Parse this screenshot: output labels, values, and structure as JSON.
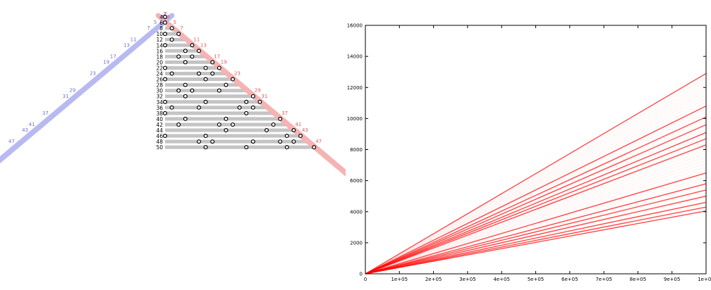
{
  "chart_data": [
    {
      "type": "diagram",
      "even_numbers": [
        4,
        6,
        8,
        10,
        12,
        14,
        16,
        18,
        20,
        22,
        24,
        26,
        28,
        30,
        32,
        34,
        36,
        38,
        40,
        42,
        44,
        46,
        48,
        50
      ],
      "primes": [
        2,
        3,
        5,
        7,
        11,
        13,
        17,
        19,
        23,
        29,
        31,
        37,
        41,
        43,
        47
      ],
      "colors": {
        "left_family": "#b9b9f2",
        "right_family": "#f5b3b3",
        "bar": "#c4c4c4",
        "left_label": "#6f6fd6",
        "right_label": "#e05a5a"
      }
    },
    {
      "type": "line",
      "xlabel": "",
      "ylabel": "",
      "xlim": [
        0,
        1000000
      ],
      "ylim": [
        0,
        16000
      ],
      "x_ticks": [
        "0",
        "1e+05",
        "2e+05",
        "3e+05",
        "4e+05",
        "5e+05",
        "6e+05",
        "7e+05",
        "8e+05",
        "9e+05",
        "1e+06"
      ],
      "y_ticks": [
        "0",
        "2000",
        "4000",
        "6000",
        "8000",
        "10000",
        "12000",
        "14000",
        "16000"
      ],
      "grid": false,
      "line_color": "#ff0000",
      "x": [
        0,
        1000000
      ],
      "series": [
        {
          "values": [
            0,
            12900
          ]
        },
        {
          "values": [
            0,
            10800
          ]
        },
        {
          "values": [
            0,
            10100
          ]
        },
        {
          "values": [
            0,
            9600
          ]
        },
        {
          "values": [
            0,
            9100
          ]
        },
        {
          "values": [
            0,
            8700
          ]
        },
        {
          "values": [
            0,
            8300
          ]
        },
        {
          "values": [
            0,
            6500
          ]
        },
        {
          "values": [
            0,
            5800
          ]
        },
        {
          "values": [
            0,
            5400
          ]
        },
        {
          "values": [
            0,
            5000
          ]
        },
        {
          "values": [
            0,
            4600
          ]
        },
        {
          "values": [
            0,
            4300
          ]
        },
        {
          "values": [
            0,
            4050
          ]
        }
      ]
    }
  ]
}
